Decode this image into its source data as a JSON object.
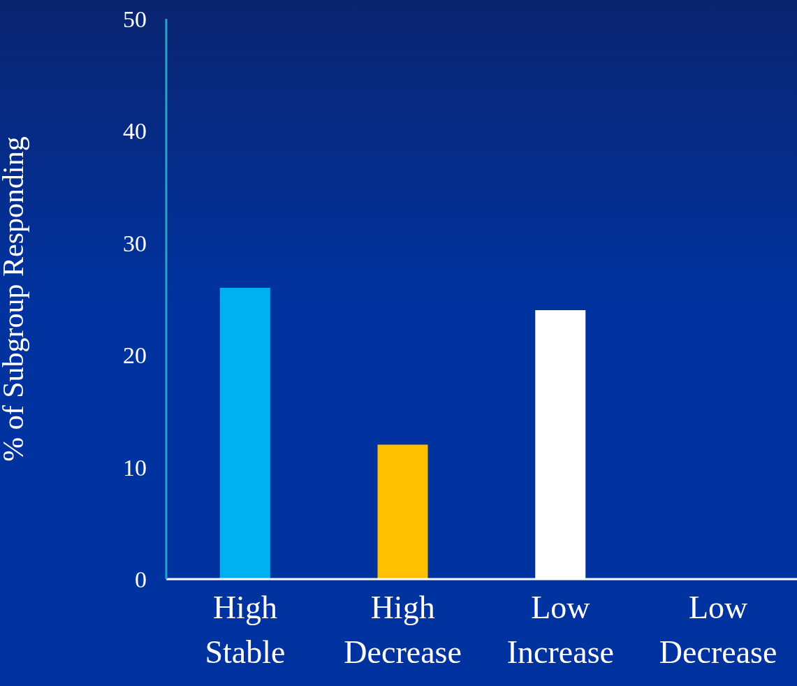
{
  "chart_data": {
    "type": "bar",
    "ylabel": "% of Subgroup Responding",
    "categories": [
      "High Stable",
      "High Decrease",
      "Low Increase",
      "Low Decrease"
    ],
    "values": [
      26,
      12,
      24,
      0
    ],
    "colors": [
      "#00b0f0",
      "#ffc000",
      "#ffffff",
      "#ffffff"
    ],
    "ylim": [
      0,
      50
    ],
    "yticks": [
      0,
      10,
      20,
      30,
      40,
      50
    ],
    "grid": false,
    "legend": false
  }
}
